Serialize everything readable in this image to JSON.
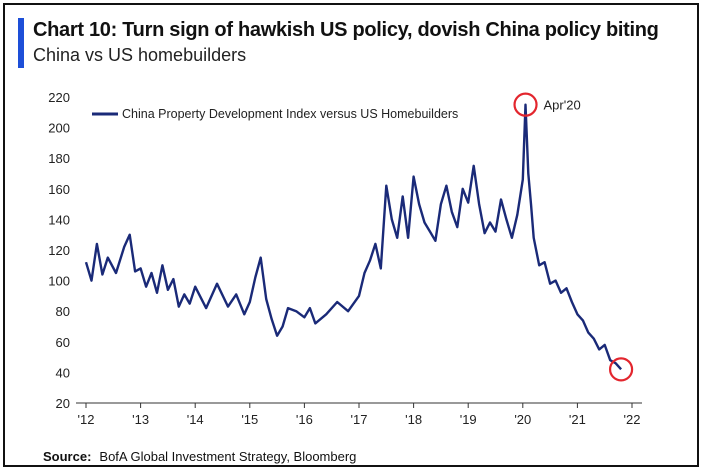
{
  "header": {
    "title": "Chart 10: Turn sign of hawkish US policy, dovish China policy biting",
    "subtitle": "China vs US homebuilders"
  },
  "footer": {
    "source_label": "Source:",
    "source_text": "BofA Global Investment Strategy, Bloomberg"
  },
  "colors": {
    "accent": "#1d4fd8",
    "series": "#1a2a78",
    "highlight": "#e3262e"
  },
  "chart_data": {
    "type": "line",
    "title": "Chart 10: Turn sign of hawkish US policy, dovish China policy biting",
    "subtitle": "China vs US homebuilders",
    "xlabel": "",
    "ylabel": "",
    "ylim": [
      20,
      220
    ],
    "xlim": [
      2012.0,
      2022.0
    ],
    "y_ticks": [
      "220",
      "200",
      "180",
      "160",
      "140",
      "120",
      "100",
      "80",
      "60",
      "40",
      "20"
    ],
    "x_ticks": [
      "'12",
      "'13",
      "'14",
      "'15",
      "'16",
      "'17",
      "'18",
      "'19",
      "'20",
      "'21",
      "'22"
    ],
    "grid": false,
    "legend_position": "top-left",
    "series": [
      {
        "name": "China Property Development Index versus US Homebuilders",
        "x": [
          2012.0,
          2012.1,
          2012.2,
          2012.3,
          2012.4,
          2012.55,
          2012.7,
          2012.8,
          2012.9,
          2013.0,
          2013.1,
          2013.2,
          2013.3,
          2013.4,
          2013.5,
          2013.6,
          2013.7,
          2013.8,
          2013.9,
          2014.0,
          2014.2,
          2014.4,
          2014.6,
          2014.75,
          2014.9,
          2015.0,
          2015.1,
          2015.2,
          2015.3,
          2015.4,
          2015.5,
          2015.6,
          2015.7,
          2015.85,
          2016.0,
          2016.1,
          2016.2,
          2016.4,
          2016.6,
          2016.8,
          2017.0,
          2017.1,
          2017.2,
          2017.3,
          2017.4,
          2017.5,
          2017.6,
          2017.7,
          2017.8,
          2017.9,
          2018.0,
          2018.1,
          2018.2,
          2018.3,
          2018.4,
          2018.5,
          2018.6,
          2018.7,
          2018.8,
          2018.9,
          2019.0,
          2019.1,
          2019.2,
          2019.3,
          2019.4,
          2019.5,
          2019.6,
          2019.7,
          2019.8,
          2019.9,
          2020.0,
          2020.05,
          2020.1,
          2020.15,
          2020.2,
          2020.3,
          2020.4,
          2020.5,
          2020.6,
          2020.7,
          2020.8,
          2020.9,
          2021.0,
          2021.1,
          2021.2,
          2021.3,
          2021.4,
          2021.5,
          2021.6,
          2021.7,
          2021.8
        ],
        "values": [
          112,
          100,
          124,
          104,
          115,
          105,
          122,
          130,
          106,
          108,
          96,
          105,
          92,
          110,
          94,
          101,
          83,
          91,
          85,
          96,
          82,
          98,
          83,
          91,
          78,
          86,
          102,
          115,
          88,
          75,
          64,
          70,
          82,
          80,
          76,
          82,
          72,
          78,
          86,
          80,
          90,
          105,
          113,
          124,
          108,
          162,
          140,
          128,
          155,
          128,
          168,
          150,
          138,
          132,
          126,
          150,
          162,
          145,
          135,
          160,
          151,
          175,
          150,
          131,
          138,
          132,
          153,
          140,
          128,
          143,
          166,
          215,
          170,
          150,
          128,
          110,
          112,
          98,
          100,
          92,
          95,
          86,
          78,
          74,
          66,
          62,
          55,
          58,
          48,
          46,
          42
        ]
      }
    ],
    "annotations": [
      {
        "text": "Apr'20",
        "x": 2020.05,
        "y": 215
      },
      {
        "text": "",
        "x": 2021.8,
        "y": 42
      }
    ]
  }
}
